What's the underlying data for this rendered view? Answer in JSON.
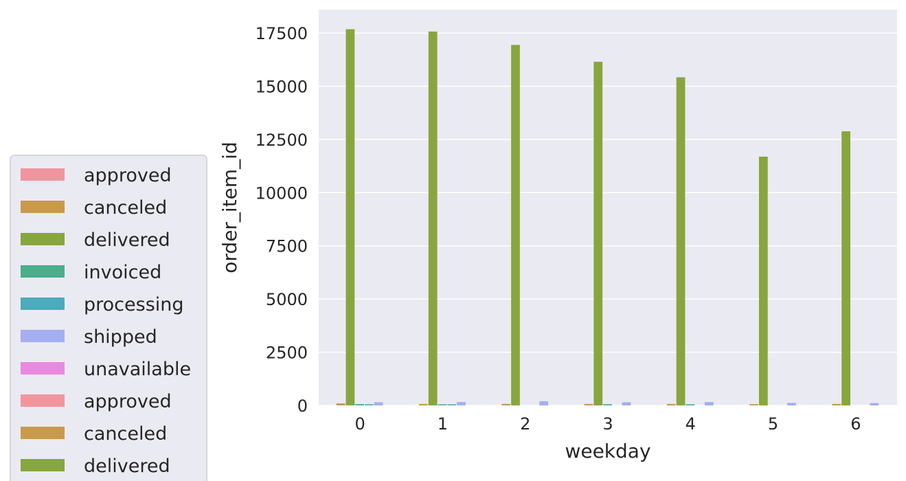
{
  "chart_data": {
    "type": "bar",
    "xlabel": "weekday",
    "ylabel": "order_item_id",
    "categories": [
      "0",
      "1",
      "2",
      "3",
      "4",
      "5",
      "6"
    ],
    "ylim": [
      0,
      18600
    ],
    "yticks": [
      0,
      2500,
      5000,
      7500,
      10000,
      12500,
      15000,
      17500
    ],
    "grid": true,
    "legend_placement": "lower-left, outside plot",
    "series": [
      {
        "name": "approved",
        "color": "#f0959e",
        "values": [
          0,
          0,
          0,
          0,
          0,
          0,
          0
        ]
      },
      {
        "name": "canceled",
        "color": "#c99a4b",
        "values": [
          95,
          70,
          70,
          70,
          70,
          60,
          70
        ]
      },
      {
        "name": "delivered",
        "color": "#87a63e",
        "values": [
          17680,
          17570,
          16940,
          16150,
          15420,
          11690,
          12880
        ]
      },
      {
        "name": "invoiced",
        "color": "#4aae8a",
        "values": [
          60,
          50,
          0,
          55,
          55,
          0,
          0
        ]
      },
      {
        "name": "processing",
        "color": "#4cabbc",
        "values": [
          55,
          50,
          0,
          0,
          0,
          0,
          0
        ]
      },
      {
        "name": "shipped",
        "color": "#a3aff0",
        "values": [
          150,
          160,
          200,
          150,
          160,
          120,
          110
        ]
      },
      {
        "name": "unavailable",
        "color": "#e98ae0",
        "values": [
          0,
          0,
          0,
          0,
          0,
          0,
          0
        ]
      }
    ],
    "legend": [
      {
        "label": "approved",
        "color": "#f0959e"
      },
      {
        "label": "canceled",
        "color": "#c99a4b"
      },
      {
        "label": "delivered",
        "color": "#87a63e"
      },
      {
        "label": "invoiced",
        "color": "#4aae8a"
      },
      {
        "label": "processing",
        "color": "#4cabbc"
      },
      {
        "label": "shipped",
        "color": "#a3aff0"
      },
      {
        "label": "unavailable",
        "color": "#e98ae0"
      },
      {
        "label": "approved",
        "color": "#f0959e"
      },
      {
        "label": "canceled",
        "color": "#c99a4b"
      },
      {
        "label": "delivered",
        "color": "#87a63e"
      }
    ]
  },
  "colors": {
    "plot_background": "#eaeaf2",
    "grid": "#ffffff",
    "legend_background": "#eaeaf2",
    "legend_border": "#cccccc",
    "text": "#262626"
  }
}
